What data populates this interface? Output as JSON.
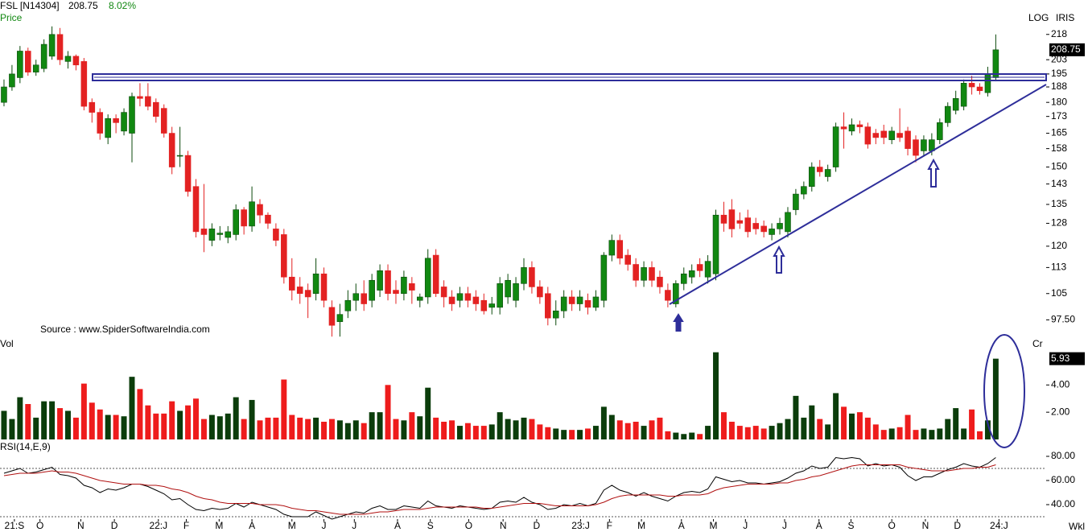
{
  "header": {
    "symbol": "FSL [N14304]",
    "price": "208.75",
    "change": "8.02%",
    "panel": "Price",
    "scale": "LOG",
    "indicator": "IRIS",
    "source": "Source : www.SpiderSoftwareIndia.com",
    "period": "Wkl"
  },
  "chart_data": [
    {
      "type": "candlestick",
      "log_scale": true,
      "up_color": "#118811",
      "down_color": "#e32222",
      "xlim": [
        -0.5,
        130.3
      ],
      "xticks": [
        {
          "value": 1.3,
          "label": "21:S"
        },
        {
          "value": 4.5,
          "label": "O"
        },
        {
          "value": 9.6,
          "label": "N"
        },
        {
          "value": 13.8,
          "label": "D"
        },
        {
          "value": 19.3,
          "label": "22:J"
        },
        {
          "value": 22.8,
          "label": "F"
        },
        {
          "value": 26.9,
          "label": "M"
        },
        {
          "value": 31,
          "label": "A"
        },
        {
          "value": 36,
          "label": "M"
        },
        {
          "value": 40,
          "label": "J"
        },
        {
          "value": 43.8,
          "label": "J"
        },
        {
          "value": 49.2,
          "label": "A"
        },
        {
          "value": 53.3,
          "label": "S"
        },
        {
          "value": 58.1,
          "label": "O"
        },
        {
          "value": 62.4,
          "label": "N"
        },
        {
          "value": 66.6,
          "label": "D"
        },
        {
          "value": 72.1,
          "label": "23:J"
        },
        {
          "value": 75.7,
          "label": "F"
        },
        {
          "value": 79.7,
          "label": "M"
        },
        {
          "value": 84.7,
          "label": "A"
        },
        {
          "value": 88.7,
          "label": "M"
        },
        {
          "value": 92.7,
          "label": "J"
        },
        {
          "value": 97.6,
          "label": "J"
        },
        {
          "value": 101.9,
          "label": "A"
        },
        {
          "value": 105.9,
          "label": "S"
        },
        {
          "value": 111,
          "label": "O"
        },
        {
          "value": 115.2,
          "label": "N"
        },
        {
          "value": 119.2,
          "label": "D"
        },
        {
          "value": 124.4,
          "label": "24:J"
        }
      ],
      "ylim": [
        92,
        228
      ],
      "yticks": [
        218,
        203,
        195,
        188,
        180,
        173,
        165,
        158,
        150,
        143,
        135,
        128,
        120,
        113,
        105,
        {
          "value": 97.5,
          "label": "97.50"
        }
      ],
      "open": [
        180,
        188,
        193,
        208,
        196,
        198,
        205,
        218,
        202,
        205,
        202,
        180,
        175,
        163,
        172,
        166,
        165,
        183,
        183,
        180,
        177,
        165,
        155,
        155,
        142,
        126,
        122,
        124,
        123,
        124,
        133,
        127,
        135,
        131,
        126,
        124,
        110,
        107,
        106,
        105,
        111,
        101,
        97,
        100,
        103,
        105,
        103,
        106,
        112,
        106,
        105,
        108,
        103,
        104,
        117,
        107,
        104,
        103,
        105,
        104,
        103,
        101,
        101,
        104,
        103,
        108,
        113,
        107,
        105,
        98,
        100,
        104,
        102,
        103,
        101,
        103,
        117,
        122,
        117,
        114,
        109,
        113,
        110,
        106,
        102,
        108,
        110,
        114,
        110,
        111,
        131,
        133,
        129,
        130,
        128,
        127,
        124,
        126,
        125,
        133,
        139,
        142,
        150,
        146,
        150,
        168,
        166,
        169,
        168,
        165,
        166,
        162,
        165,
        166,
        162,
        157,
        157,
        162,
        170,
        176,
        178,
        190,
        188,
        185,
        193
      ],
      "high": [
        192,
        200,
        211,
        210,
        203,
        215,
        223,
        222,
        208,
        206,
        204,
        182,
        177,
        174,
        174,
        177,
        185,
        190,
        190,
        182,
        179,
        168,
        168,
        157,
        145,
        143,
        128,
        127,
        127,
        135,
        134,
        142,
        137,
        132,
        128,
        126,
        116,
        110,
        108,
        116,
        113,
        103,
        102,
        106,
        108,
        109,
        111,
        114,
        114,
        109,
        112,
        110,
        105,
        119,
        119,
        109,
        106,
        107,
        107,
        106,
        105,
        104,
        110,
        111,
        110,
        116,
        115,
        109,
        107,
        103,
        106,
        106,
        106,
        105,
        106,
        118,
        124,
        124,
        119,
        116,
        115,
        115,
        112,
        108,
        109,
        113,
        114,
        116,
        117,
        133,
        136,
        137,
        132,
        133,
        130,
        129,
        128,
        130,
        134,
        141,
        144,
        152,
        153,
        151,
        170,
        175,
        172,
        171,
        170,
        167,
        169,
        168,
        177,
        168,
        164,
        164,
        165,
        172,
        180,
        186,
        192,
        194,
        190,
        199,
        218
      ],
      "low": [
        178,
        186,
        190,
        194,
        194,
        196,
        203,
        200,
        198,
        197,
        176,
        170,
        162,
        160,
        165,
        164,
        152,
        178,
        176,
        170,
        163,
        147,
        150,
        138,
        123,
        118,
        120,
        122,
        121,
        122,
        124,
        125,
        128,
        126,
        120,
        108,
        103,
        102,
        98,
        103,
        101,
        93,
        93,
        98,
        100,
        100,
        101,
        104,
        103,
        102,
        103,
        102,
        101,
        102,
        104,
        101,
        100,
        101,
        101,
        100,
        99,
        99,
        99,
        102,
        101,
        106,
        105,
        102,
        96,
        96,
        98,
        100,
        100,
        99,
        100,
        101,
        115,
        114,
        112,
        107,
        107,
        107,
        105,
        101,
        101,
        106,
        108,
        110,
        108,
        109,
        125,
        123,
        126,
        123,
        124,
        123,
        122,
        124,
        123,
        131,
        137,
        140,
        146,
        144,
        148,
        158,
        164,
        165,
        158,
        160,
        160,
        160,
        161,
        155,
        152,
        155,
        155,
        160,
        168,
        174,
        176,
        184,
        184,
        183,
        191
      ],
      "close": [
        188,
        195,
        208,
        196,
        200,
        212,
        218,
        203,
        205,
        200,
        178,
        175,
        165,
        172,
        170,
        175,
        183,
        182,
        178,
        173,
        165,
        150,
        155,
        140,
        125,
        124,
        126,
        124.5,
        125,
        133,
        127,
        136,
        131,
        128,
        122,
        110,
        106,
        105,
        104,
        111,
        103,
        96,
        99,
        103,
        105,
        102,
        109,
        112,
        105,
        105,
        110,
        106,
        104,
        116,
        105,
        104,
        102,
        105,
        103,
        102,
        100,
        102,
        108,
        109,
        108,
        113,
        107,
        104,
        98,
        100,
        104,
        102,
        104,
        101,
        104,
        117,
        122,
        116,
        114,
        109,
        113,
        109,
        107,
        103,
        108,
        111,
        112,
        112,
        115,
        131,
        128,
        126,
        128,
        125,
        126,
        125,
        126,
        128,
        132,
        139,
        142,
        150,
        148,
        149,
        168,
        167,
        169,
        168,
        160,
        163,
        163,
        166,
        163,
        158,
        155,
        162,
        162,
        170,
        178,
        182,
        190,
        188,
        186,
        195,
        208.75
      ]
    },
    {
      "type": "bar",
      "title": "Vol",
      "unit": "Cr",
      "up_color": "#0b3d0b",
      "down_color": "#ee1c1c",
      "last_label": "5.93",
      "ylim": [
        0,
        6.5
      ],
      "yticks": [
        {
          "value": 2,
          "label": "2.00"
        },
        {
          "value": 4,
          "label": "4.00"
        }
      ],
      "values": [
        2.1,
        1.5,
        3.1,
        2.6,
        1.6,
        2.8,
        2.8,
        2.3,
        2.1,
        1.6,
        4.1,
        2.7,
        2.2,
        1.8,
        1.8,
        1.7,
        4.6,
        3.7,
        2.5,
        1.9,
        1.9,
        2.8,
        2.1,
        2.5,
        3.0,
        1.5,
        1.8,
        1.7,
        1.9,
        3.1,
        1.5,
        2.9,
        1.4,
        1.6,
        1.6,
        4.4,
        1.8,
        1.6,
        1.5,
        1.6,
        1.3,
        1.5,
        1.4,
        1.2,
        1.4,
        1.2,
        2.0,
        2.0,
        4.0,
        1.5,
        1.4,
        2.0,
        1.7,
        3.8,
        1.6,
        1.3,
        1.4,
        1.0,
        1.2,
        1.0,
        1.0,
        1.1,
        2.0,
        1.5,
        1.4,
        1.6,
        1.5,
        1.1,
        0.9,
        0.8,
        0.7,
        0.7,
        0.7,
        0.8,
        1.0,
        2.4,
        1.8,
        1.4,
        1.2,
        1.3,
        1.0,
        1.4,
        1.6,
        0.6,
        0.5,
        0.4,
        0.5,
        0.4,
        1.0,
        6.4,
        2.0,
        1.3,
        1.0,
        0.9,
        1.0,
        0.8,
        1.0,
        1.2,
        1.5,
        3.2,
        1.6,
        2.5,
        1.5,
        1.1,
        3.4,
        2.4,
        1.9,
        2.0,
        1.6,
        1.1,
        0.7,
        0.8,
        0.9,
        1.8,
        0.7,
        0.8,
        0.7,
        0.8,
        1.5,
        2.3,
        0.8,
        2.2,
        0.6,
        1.4,
        5.93
      ]
    },
    {
      "type": "line",
      "title": "RSI(14,E,9)",
      "ylim": [
        29,
        90
      ],
      "levels": [
        70,
        30
      ],
      "yticks": [
        {
          "value": 80,
          "label": "80.00"
        },
        {
          "value": 60,
          "label": "60.00"
        },
        {
          "value": 40,
          "label": "40.00"
        }
      ],
      "series": [
        {
          "color": "#000000",
          "values": [
            66,
            68,
            70,
            66,
            67,
            69,
            71,
            65,
            64,
            62,
            56,
            54,
            50,
            53,
            52,
            54,
            57,
            57,
            55,
            52,
            49,
            44,
            45,
            40,
            36,
            35,
            37,
            36,
            37,
            41,
            38,
            42,
            40,
            38,
            36,
            32,
            30,
            30,
            30,
            34,
            31,
            28,
            30,
            32,
            34,
            33,
            37,
            39,
            36,
            36,
            39,
            38,
            37,
            43,
            39,
            38,
            37,
            39,
            38,
            37,
            36,
            37,
            42,
            43,
            42,
            46,
            42,
            40,
            36,
            37,
            40,
            39,
            41,
            39,
            41,
            52,
            56,
            52,
            50,
            47,
            50,
            47,
            45,
            43,
            47,
            50,
            51,
            50,
            53,
            63,
            61,
            59,
            60,
            58,
            58,
            57,
            58,
            59,
            62,
            66,
            68,
            72,
            70,
            71,
            79,
            78,
            79,
            78,
            72,
            74,
            72,
            73,
            71,
            64,
            60,
            63,
            63,
            66,
            69,
            71,
            74,
            72,
            71,
            74,
            79
          ]
        },
        {
          "color": "#b01010",
          "values": [
            64,
            65,
            66,
            66,
            66,
            67,
            68,
            67,
            67,
            66,
            64,
            62,
            60,
            59,
            58,
            57,
            57,
            57,
            56,
            56,
            55,
            53,
            52,
            50,
            47,
            45,
            44,
            42,
            41,
            41,
            41,
            41,
            40,
            40,
            40,
            39,
            37,
            36,
            35,
            35,
            34,
            33,
            32,
            32,
            32,
            32,
            33,
            34,
            34,
            35,
            36,
            36,
            36,
            37,
            38,
            38,
            38,
            38,
            38,
            38,
            37,
            37,
            38,
            39,
            40,
            41,
            41,
            41,
            40,
            39,
            39,
            39,
            39,
            39,
            40,
            42,
            45,
            47,
            48,
            48,
            48,
            48,
            48,
            47,
            47,
            48,
            48,
            48,
            49,
            52,
            54,
            55,
            56,
            57,
            57,
            57,
            57,
            58,
            58,
            60,
            61,
            63,
            64,
            66,
            68,
            70,
            72,
            73,
            73,
            73,
            73,
            73,
            73,
            71,
            70,
            69,
            68,
            68,
            68,
            69,
            70,
            70,
            71,
            71,
            73
          ]
        }
      ]
    }
  ]
}
